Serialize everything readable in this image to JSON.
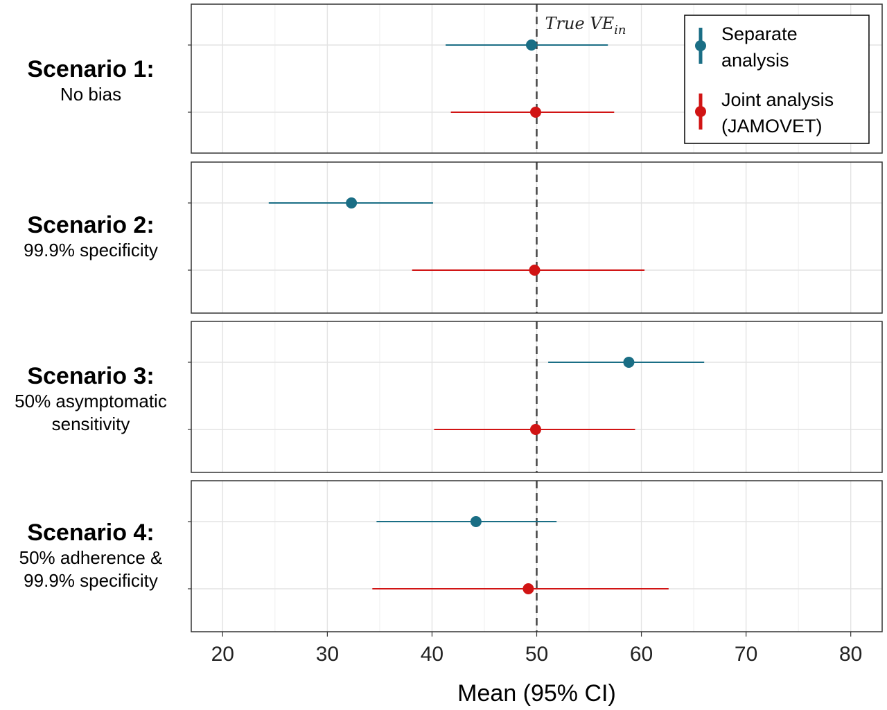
{
  "chart_data": {
    "type": "forest",
    "xlabel": "Mean (95% CI)",
    "xlim": [
      17,
      83
    ],
    "xticks": [
      20,
      30,
      40,
      50,
      60,
      70,
      80
    ],
    "grid": true,
    "reference_line": {
      "x": 50,
      "label_main": "True VE",
      "label_sub": "in"
    },
    "legend": {
      "placement": "top-right",
      "entries": [
        {
          "name": "Separate analysis",
          "lines": [
            "Separate",
            "analysis"
          ],
          "color": "#1a6e85"
        },
        {
          "name": "Joint analysis (JAMOVET)",
          "lines": [
            "Joint analysis",
            "(JAMOVET)"
          ],
          "color": "#d11414"
        }
      ]
    },
    "series": [
      {
        "name": "Separate analysis",
        "color": "#1a6e85"
      },
      {
        "name": "Joint analysis (JAMOVET)",
        "color": "#d11414"
      }
    ],
    "panels": [
      {
        "title": "Scenario 1:",
        "subtitle": [
          "No bias"
        ],
        "estimates": [
          {
            "series": "Separate analysis",
            "mean": 49.5,
            "lower": 41.3,
            "upper": 56.8
          },
          {
            "series": "Joint analysis (JAMOVET)",
            "mean": 49.9,
            "lower": 41.8,
            "upper": 57.4
          }
        ]
      },
      {
        "title": "Scenario 2:",
        "subtitle": [
          "99.9% specificity"
        ],
        "estimates": [
          {
            "series": "Separate analysis",
            "mean": 32.3,
            "lower": 24.4,
            "upper": 40.1
          },
          {
            "series": "Joint analysis (JAMOVET)",
            "mean": 49.8,
            "lower": 38.1,
            "upper": 60.3
          }
        ]
      },
      {
        "title": "Scenario 3:",
        "subtitle": [
          "50% asymptomatic",
          "sensitivity"
        ],
        "estimates": [
          {
            "series": "Separate analysis",
            "mean": 58.8,
            "lower": 51.1,
            "upper": 66.0
          },
          {
            "series": "Joint analysis (JAMOVET)",
            "mean": 49.9,
            "lower": 40.2,
            "upper": 59.4
          }
        ]
      },
      {
        "title": "Scenario 4:",
        "subtitle": [
          "50% adherence &",
          "99.9% specificity"
        ],
        "estimates": [
          {
            "series": "Separate analysis",
            "mean": 44.2,
            "lower": 34.7,
            "upper": 51.9
          },
          {
            "series": "Joint analysis (JAMOVET)",
            "mean": 49.2,
            "lower": 34.3,
            "upper": 62.6
          }
        ]
      }
    ]
  }
}
